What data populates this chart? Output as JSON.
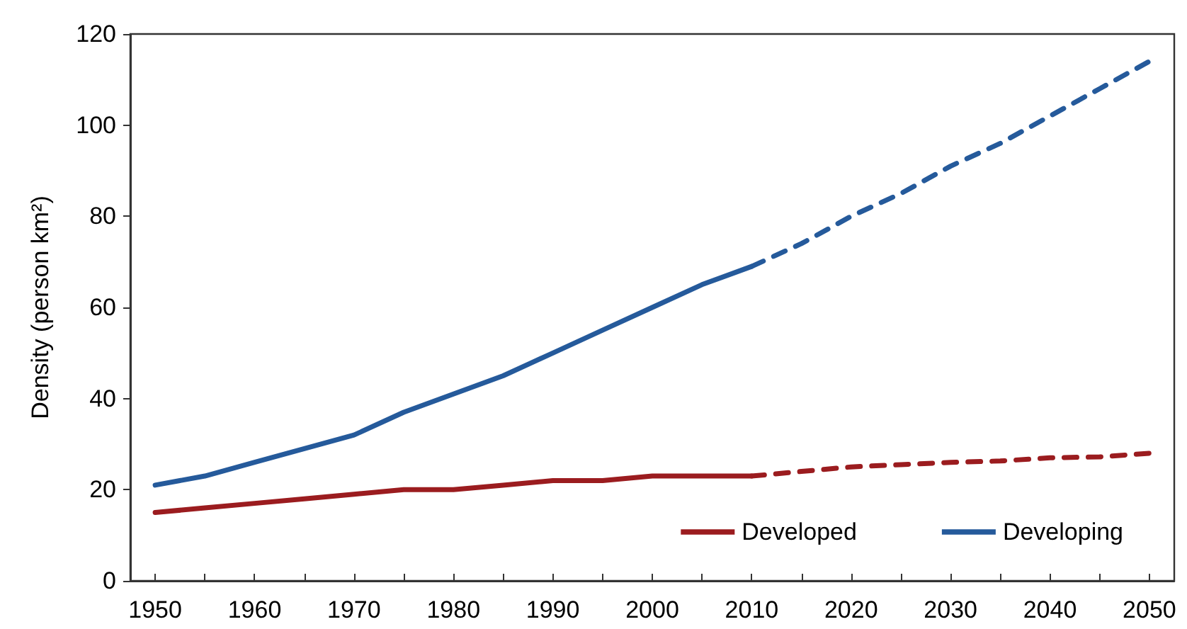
{
  "chart_data": {
    "type": "line",
    "ylabel": "Density (person km²)",
    "x": [
      1950,
      1955,
      1960,
      1965,
      1970,
      1975,
      1980,
      1985,
      1990,
      1995,
      2000,
      2005,
      2010
    ],
    "xlim": [
      1947.5,
      2052.5
    ],
    "xticks": [
      1950,
      {
        "value": 1955,
        "label": null
      },
      1960,
      {
        "value": 1965,
        "label": null
      },
      1970,
      {
        "value": 1975,
        "label": null
      },
      1980,
      {
        "value": 1985,
        "label": null
      },
      1990,
      {
        "value": 1995,
        "label": null
      },
      2000,
      {
        "value": 2005,
        "label": null
      },
      2010,
      {
        "value": 2015,
        "label": null
      },
      2020,
      {
        "value": 2025,
        "label": null
      },
      2030,
      {
        "value": 2035,
        "label": null
      },
      2040,
      {
        "value": 2045,
        "label": null
      },
      2050
    ],
    "ylim": [
      0,
      120
    ],
    "yticks": [
      0,
      20,
      40,
      60,
      80,
      100,
      120
    ],
    "grid": false,
    "legend": "bottom right",
    "marker": "none",
    "series": [
      {
        "name": "Developed",
        "color": "#9b1c1f",
        "line_style": "solid",
        "values": [
          15,
          16,
          17,
          18,
          19,
          20,
          20,
          21,
          22,
          22,
          23,
          23,
          23
        ]
      },
      {
        "color": "#9b1c1f",
        "line_style": "dashed",
        "x": [
          2010,
          2015,
          2020,
          2025,
          2030,
          2035,
          2040,
          2045,
          2050
        ],
        "values": [
          23,
          24,
          25,
          25.5,
          26,
          26.3,
          27,
          27.2,
          28
        ]
      },
      {
        "name": "Developing",
        "color": "#255a9b",
        "line_style": "solid",
        "values": [
          21,
          23,
          26,
          29,
          32,
          37,
          41,
          45,
          50,
          55,
          60,
          65,
          69
        ]
      },
      {
        "color": "#255a9b",
        "line_style": "dashed",
        "x": [
          2010,
          2015,
          2020,
          2025,
          2030,
          2035,
          2040,
          2045,
          2050
        ],
        "values": [
          69,
          74,
          80,
          85,
          91,
          96,
          102,
          108,
          114
        ]
      }
    ]
  }
}
